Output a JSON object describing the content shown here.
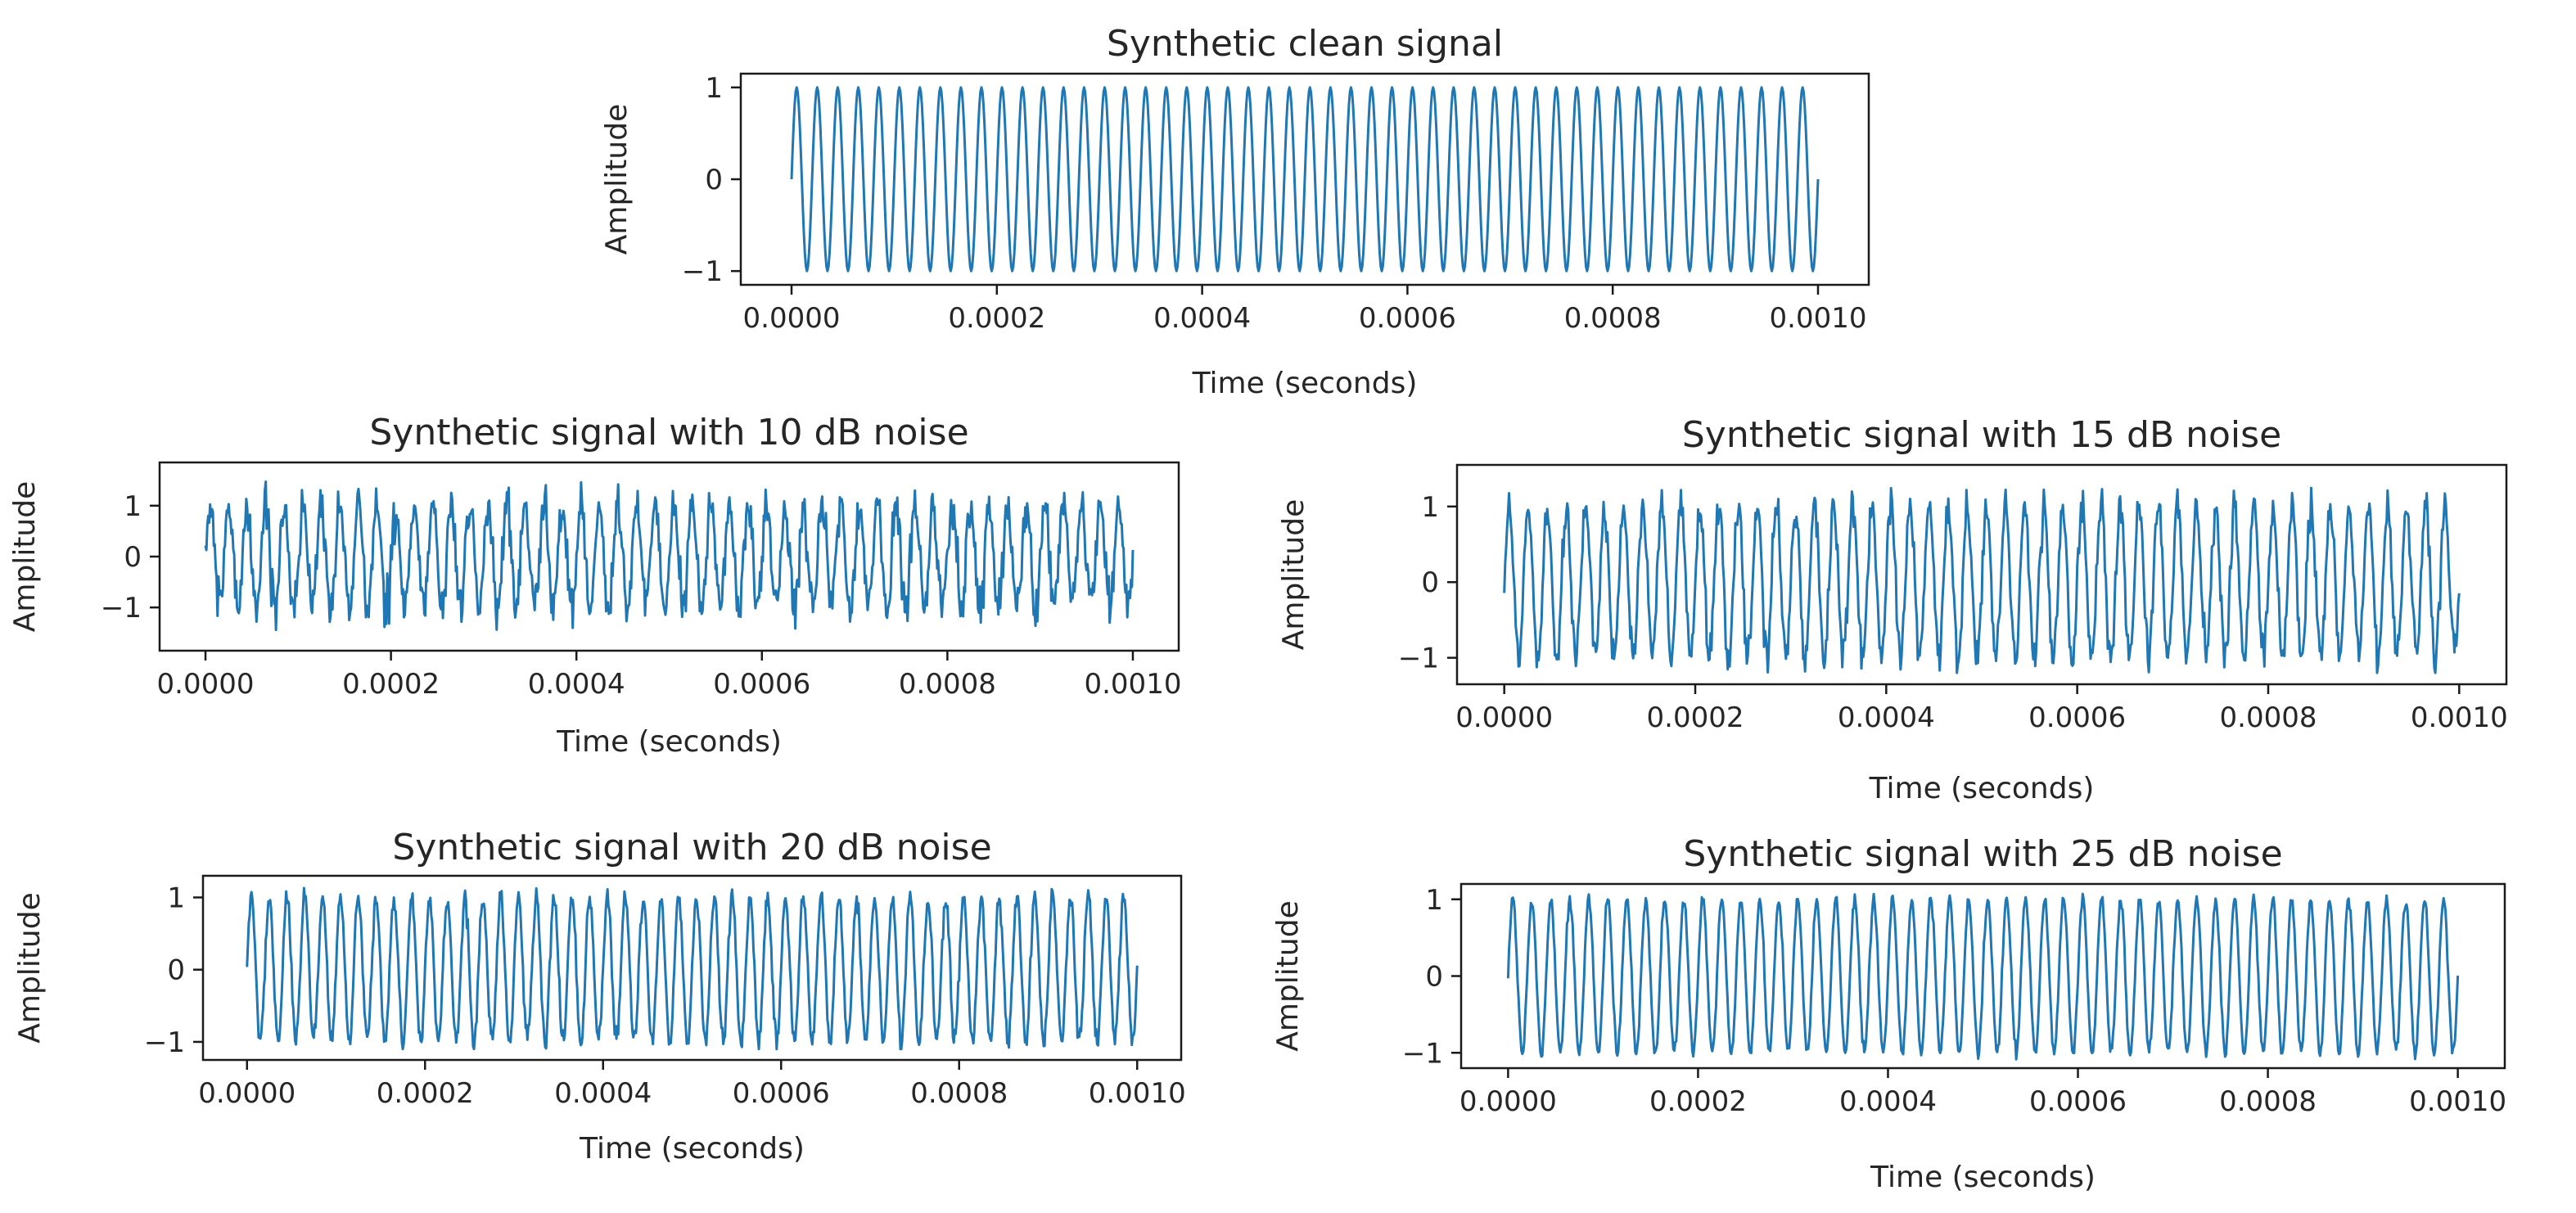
{
  "colors": {
    "signal": "#1f77b4"
  },
  "chart_data": [
    {
      "type": "line",
      "title": "Synthetic clean signal",
      "xlabel": "Time (seconds)",
      "ylabel": "Amplitude",
      "xlim": [
        0,
        0.001
      ],
      "ylim": [
        -1.15,
        1.15
      ],
      "xticks": [
        0,
        0.0002,
        0.0004,
        0.0006,
        0.0008,
        0.001
      ],
      "xtick_labels": [
        "0.0000",
        "0.0002",
        "0.0004",
        "0.0006",
        "0.0008",
        "0.0010"
      ],
      "yticks": [
        -1,
        0,
        1
      ],
      "ytick_labels": [
        "−1",
        "0",
        "1"
      ],
      "series": [
        {
          "frequency_hz": 50000,
          "amplitude": 1,
          "noise": "none",
          "x_range": [
            0,
            0.001
          ]
        }
      ]
    },
    {
      "type": "line",
      "title": "Synthetic signal with 10 dB noise",
      "xlabel": "Time (seconds)",
      "ylabel": "Amplitude",
      "xlim": [
        0,
        0.001
      ],
      "ylim": [
        -1.85,
        1.85
      ],
      "xticks": [
        0,
        0.0002,
        0.0004,
        0.0006,
        0.0008,
        0.001
      ],
      "xtick_labels": [
        "0.0000",
        "0.0002",
        "0.0004",
        "0.0006",
        "0.0008",
        "0.0010"
      ],
      "yticks": [
        -1,
        0,
        1
      ],
      "ytick_labels": [
        "−1",
        "0",
        "1"
      ],
      "series": [
        {
          "frequency_hz": 50000,
          "amplitude": 1,
          "noise": "10 dB",
          "x_range": [
            0,
            0.001
          ],
          "y_range": [
            -1.6,
            1.8
          ]
        }
      ]
    },
    {
      "type": "line",
      "title": "Synthetic signal with 15 dB noise",
      "xlabel": "Time (seconds)",
      "ylabel": "Amplitude",
      "xlim": [
        0,
        0.001
      ],
      "ylim": [
        -1.35,
        1.55
      ],
      "xticks": [
        0,
        0.0002,
        0.0004,
        0.0006,
        0.0008,
        0.001
      ],
      "xtick_labels": [
        "0.0000",
        "0.0002",
        "0.0004",
        "0.0006",
        "0.0008",
        "0.0010"
      ],
      "yticks": [
        -1,
        0,
        1
      ],
      "ytick_labels": [
        "−1",
        "0",
        "1"
      ],
      "series": [
        {
          "frequency_hz": 50000,
          "amplitude": 1,
          "noise": "15 dB",
          "x_range": [
            0,
            0.001
          ],
          "y_range": [
            -1.2,
            1.4
          ]
        }
      ]
    },
    {
      "type": "line",
      "title": "Synthetic signal with 20 dB noise",
      "xlabel": "Time (seconds)",
      "ylabel": "Amplitude",
      "xlim": [
        0,
        0.001
      ],
      "ylim": [
        -1.25,
        1.3
      ],
      "xticks": [
        0,
        0.0002,
        0.0004,
        0.0006,
        0.0008,
        0.001
      ],
      "xtick_labels": [
        "0.0000",
        "0.0002",
        "0.0004",
        "0.0006",
        "0.0008",
        "0.0010"
      ],
      "yticks": [
        -1,
        0,
        1
      ],
      "ytick_labels": [
        "−1",
        "0",
        "1"
      ],
      "series": [
        {
          "frequency_hz": 50000,
          "amplitude": 1,
          "noise": "20 dB",
          "x_range": [
            0,
            0.001
          ],
          "y_range": [
            -1.1,
            1.2
          ]
        }
      ]
    },
    {
      "type": "line",
      "title": "Synthetic signal with 25 dB noise",
      "xlabel": "Time (seconds)",
      "ylabel": "Amplitude",
      "xlim": [
        0,
        0.001
      ],
      "ylim": [
        -1.2,
        1.2
      ],
      "xticks": [
        0,
        0.0002,
        0.0004,
        0.0006,
        0.0008,
        0.001
      ],
      "xtick_labels": [
        "0.0000",
        "0.0002",
        "0.0004",
        "0.0006",
        "0.0008",
        "0.0010"
      ],
      "yticks": [
        -1,
        0,
        1
      ],
      "ytick_labels": [
        "−1",
        "0",
        "1"
      ],
      "series": [
        {
          "frequency_hz": 50000,
          "amplitude": 1,
          "noise": "25 dB",
          "x_range": [
            0,
            0.001
          ],
          "y_range": [
            -1.1,
            1.1
          ]
        }
      ]
    }
  ]
}
